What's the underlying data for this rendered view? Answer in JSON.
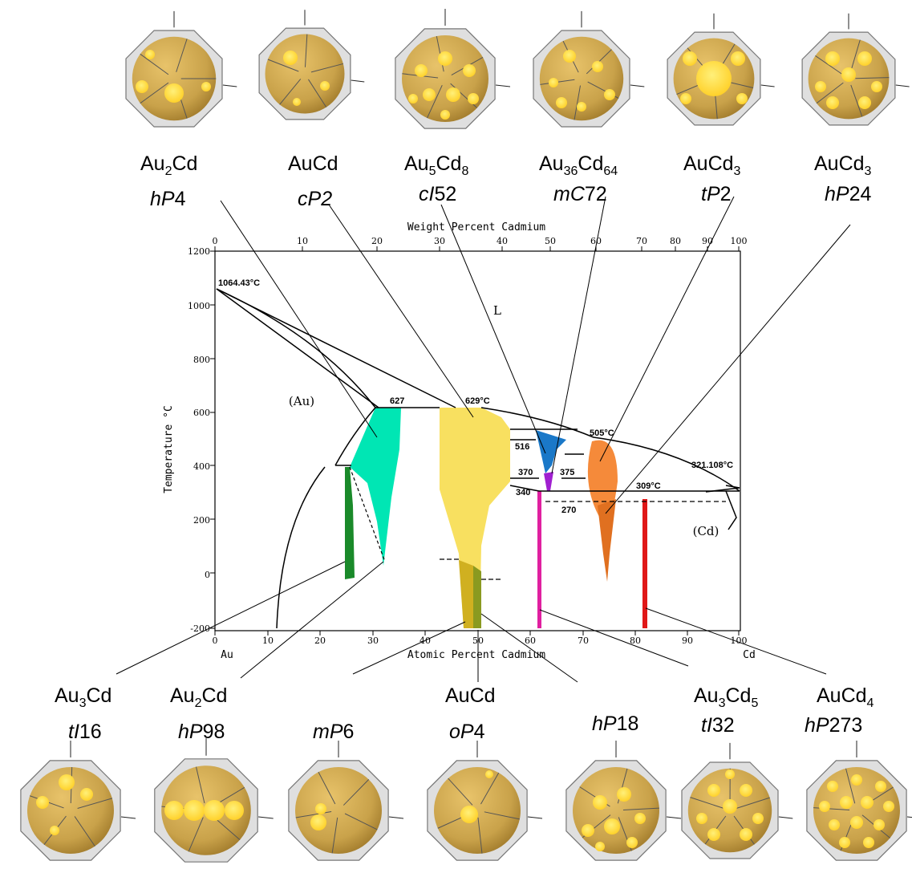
{
  "diagram": {
    "top_axis_title": "Weight Percent Cadmium",
    "bottom_axis_title": "Atomic Percent Cadmium",
    "y_axis_title": "Temperature °C",
    "left_element": "Au",
    "right_element": "Cd",
    "top_ticks": [
      "0",
      "10",
      "20",
      "30",
      "40",
      "50",
      "60",
      "70",
      "80",
      "90",
      "100"
    ],
    "bottom_ticks": [
      "0",
      "10",
      "20",
      "30",
      "40",
      "50",
      "60",
      "70",
      "80",
      "90",
      "100"
    ],
    "y_ticks": [
      "1200",
      "1000",
      "800",
      "600",
      "400",
      "200",
      "0",
      "-200"
    ],
    "region_labels": {
      "liquid": "L",
      "au_solid": "(Au)",
      "cd_solid": "(Cd)"
    },
    "annotations": {
      "au_melt": "1064.43°C",
      "t627": "627",
      "t629": "629°C",
      "t516": "516",
      "t505": "505°C",
      "t370": "370",
      "t375": "375",
      "t340": "340",
      "t309": "309°C",
      "t270": "270",
      "cd_melt": "321.108°C"
    }
  },
  "phases_top": [
    {
      "formula": "Au",
      "s1": "2",
      "b": "Cd",
      "s2": "",
      "pearson_a": "hP",
      "pearson_b": "4"
    },
    {
      "formula": "AuCd",
      "s1": "",
      "b": "",
      "s2": "",
      "pearson_a": "cP",
      "pearson_b": "2"
    },
    {
      "formula": "Au",
      "s1": "5",
      "b": "Cd",
      "s2": "8",
      "pearson_a": "cI",
      "pearson_b": "52"
    },
    {
      "formula": "Au",
      "s1": "36",
      "b": "Cd",
      "s2": "64",
      "pearson_a": "mC",
      "pearson_b": "72"
    },
    {
      "formula": "AuCd",
      "s1": "3",
      "b": "",
      "s2": "",
      "pearson_a": "tP",
      "pearson_b": "2"
    },
    {
      "formula": "AuCd",
      "s1": "3",
      "b": "",
      "s2": "",
      "pearson_a": "hP",
      "pearson_b": "24"
    }
  ],
  "phases_bottom": [
    {
      "formula": "Au",
      "s1": "3",
      "b": "Cd",
      "s2": "",
      "pearson_a": "tI",
      "pearson_b": "16"
    },
    {
      "formula": "Au",
      "s1": "2",
      "b": "Cd",
      "s2": "",
      "pearson_a": "hP",
      "pearson_b": "98"
    },
    {
      "formula": "",
      "s1": "",
      "b": "",
      "s2": "",
      "pearson_a": "mP",
      "pearson_b": "6"
    },
    {
      "formula": "AuCd",
      "s1": "",
      "b": "",
      "s2": "",
      "pearson_a": "oP",
      "pearson_b": "4"
    },
    {
      "formula": "",
      "s1": "",
      "b": "",
      "s2": "",
      "pearson_a": "hP",
      "pearson_b": "18"
    },
    {
      "formula": "Au",
      "s1": "3",
      "b": "Cd",
      "s2": "5",
      "pearson_a": "tI",
      "pearson_b": "32"
    },
    {
      "formula": "AuCd",
      "s1": "4",
      "b": "",
      "s2": "",
      "pearson_a": "hP",
      "pearson_b": "273"
    }
  ],
  "colors": {
    "cluster_fill": "#c9a24a",
    "cluster_spot": "#ffd53a",
    "cluster_shell": "#b8b8b8",
    "au2cd_hp4": "#00e6b4",
    "auCd_cp2": "#f8e060",
    "au5cd8": "#1a78c8",
    "au36cd64": "#a020d0",
    "aucd3_tp2": "#f58a3a",
    "aucd3_hp24": "#e07020",
    "au3cd_ti16": "#1a8a2a",
    "mp6": "#d0b020",
    "op4": "#8a9a20",
    "au3cd5": "#e020a0",
    "aucd4": "#e01818"
  }
}
